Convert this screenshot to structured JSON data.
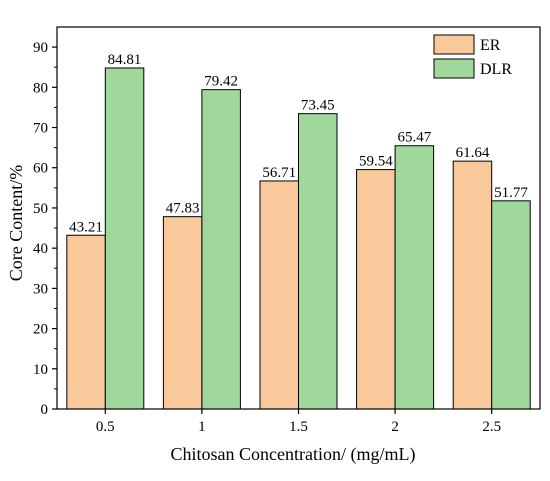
{
  "chart_data": {
    "type": "bar",
    "title": "",
    "xlabel": "Chitosan Concentration/ (mg/mL)",
    "ylabel": "Core Content/%",
    "categories": [
      "0.5",
      "1",
      "1.5",
      "2",
      "2.5"
    ],
    "ylim": [
      0,
      95
    ],
    "yticks": [
      0,
      10,
      20,
      30,
      40,
      50,
      60,
      70,
      80,
      90
    ],
    "grid": false,
    "legend_position": "top-right",
    "series": [
      {
        "name": "ER",
        "color": "#f9c89b",
        "values": [
          43.21,
          47.83,
          56.71,
          59.54,
          61.64
        ]
      },
      {
        "name": "DLR",
        "color": "#a0d89c",
        "values": [
          84.81,
          79.42,
          73.45,
          65.47,
          51.77
        ]
      }
    ]
  }
}
